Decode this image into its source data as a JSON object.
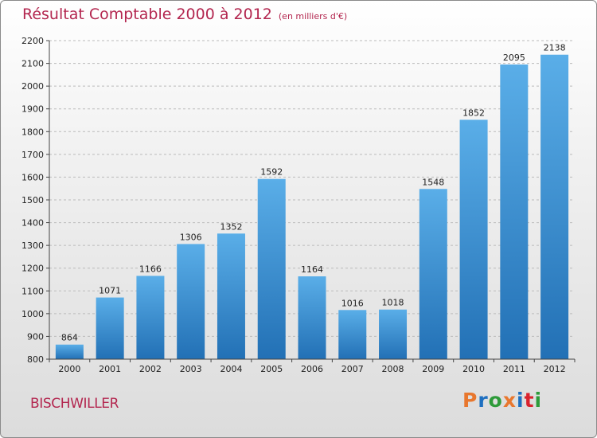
{
  "header": {
    "title": "Résultat Comptable 2000 à 2012",
    "unit": "(en milliers d'€)"
  },
  "footer": {
    "city": "BISCHWILLER",
    "logo": "Proxiti",
    "logo_colors": [
      "#e8772e",
      "#1e6fc0",
      "#2e9b3a",
      "#e8772e",
      "#1e6fc0",
      "#d9232e",
      "#2e9b3a"
    ]
  },
  "colors": {
    "title": "#b3264f",
    "bar_top": "#5aaee8",
    "bar_bottom": "#2270b5",
    "grid": "#bbbbbb"
  },
  "chart_data": {
    "type": "bar",
    "categories": [
      "2000",
      "2001",
      "2002",
      "2003",
      "2004",
      "2005",
      "2006",
      "2007",
      "2008",
      "2009",
      "2010",
      "2011",
      "2012"
    ],
    "values": [
      864,
      1071,
      1166,
      1306,
      1352,
      1592,
      1164,
      1016,
      1018,
      1548,
      1852,
      2095,
      2138
    ],
    "ylim": [
      800,
      2200
    ],
    "yticks": [
      800,
      900,
      1000,
      1100,
      1200,
      1300,
      1400,
      1500,
      1600,
      1700,
      1800,
      1900,
      2000,
      2100,
      2200
    ],
    "grid": true,
    "data_labels": true
  }
}
